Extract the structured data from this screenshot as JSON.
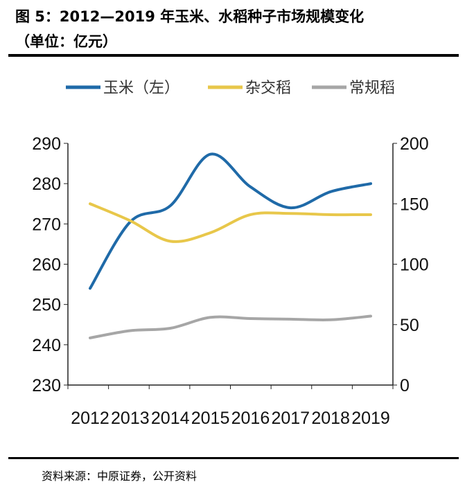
{
  "title_line1": "图 5：2012—2019 年玉米、水稻种子市场规模变化",
  "title_line2": "（单位：亿元）",
  "source": "资料来源：中原证券，公开资料",
  "chart_data": {
    "type": "line",
    "title": "图 5：2012—2019 年玉米、水稻种子市场规模变化（单位：亿元）",
    "x": [
      "2012",
      "2013",
      "2014",
      "2015",
      "2016",
      "2017",
      "2018",
      "2019"
    ],
    "y_left": {
      "ylim": [
        230,
        290
      ],
      "ticks": [
        "230",
        "240",
        "250",
        "260",
        "270",
        "280",
        "290"
      ]
    },
    "y_right": {
      "ylim": [
        0,
        200
      ],
      "ticks": [
        "0",
        "50",
        "100",
        "150",
        "200"
      ]
    },
    "legend_placement": "top",
    "grid": false,
    "series": [
      {
        "name": "玉米（左）",
        "axis": "left",
        "color": "#1f6aa8",
        "values": [
          254,
          270.5,
          274.5,
          287.3,
          279.2,
          274,
          278,
          280
        ]
      },
      {
        "name": "杂交稻",
        "axis": "right",
        "color": "#e8c74a",
        "values": [
          150,
          136,
          119,
          126,
          141,
          142,
          141,
          141
        ]
      },
      {
        "name": "常规稻",
        "axis": "right",
        "color": "#a6a6a6",
        "values": [
          39,
          45,
          47,
          56,
          55,
          54.5,
          54,
          57
        ]
      }
    ]
  }
}
